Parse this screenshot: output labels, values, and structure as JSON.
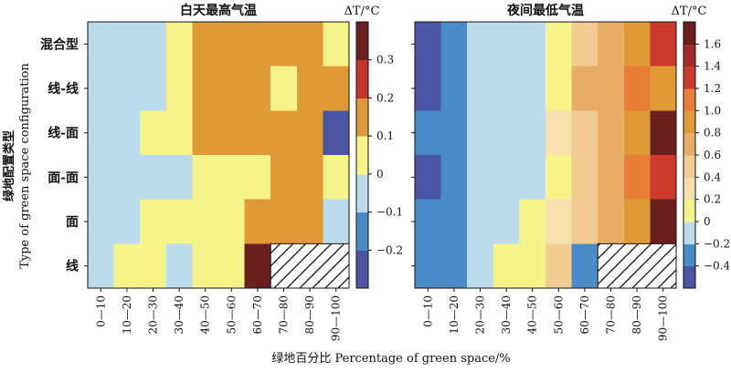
{
  "chart_data": [
    {
      "type": "heatmap",
      "title": "白天最高气温",
      "xlabel": "绿地百分比 Percentage of green space/%",
      "ylabel_cn": "绿地配置类型",
      "ylabel_en": "Type of green space configuration",
      "x_categories": [
        "0—10",
        "10—20",
        "20—30",
        "30—40",
        "40—50",
        "50—60",
        "60—70",
        "70—80",
        "80—90",
        "90—100"
      ],
      "y_categories": [
        "混合型",
        "线-线",
        "线-面",
        "面-面",
        "面",
        "线"
      ],
      "colorbar": {
        "label": "ΔT/°C",
        "boundaries": [
          -0.3,
          -0.2,
          -0.1,
          0,
          0.1,
          0.2,
          0.3,
          0.4
        ],
        "ticks": [
          -0.2,
          -0.1,
          0,
          0.1,
          0.2,
          0.3
        ],
        "tick_labels": [
          "−0.2",
          "−0.1",
          "0",
          "0.1",
          "0.2",
          "0.3"
        ],
        "colors": [
          "#4a56a4",
          "#4a8cc8",
          "#bcdcee",
          "#f4f48a",
          "#e09a35",
          "#c8332a",
          "#6b1e1e"
        ]
      },
      "values": [
        [
          -0.05,
          -0.05,
          -0.05,
          0.05,
          0.15,
          0.15,
          0.15,
          0.15,
          0.15,
          0.05
        ],
        [
          -0.05,
          -0.05,
          -0.05,
          0.05,
          0.15,
          0.15,
          0.15,
          0.05,
          0.15,
          0.15
        ],
        [
          -0.05,
          -0.05,
          0.05,
          0.05,
          0.15,
          0.15,
          0.15,
          0.15,
          0.15,
          -0.25
        ],
        [
          -0.05,
          -0.05,
          -0.05,
          -0.05,
          0.05,
          0.05,
          0.05,
          0.15,
          0.15,
          0.05
        ],
        [
          -0.05,
          -0.05,
          0.05,
          0.05,
          0.05,
          0.05,
          0.15,
          0.15,
          0.15,
          -0.05
        ],
        [
          -0.05,
          0.05,
          0.05,
          -0.05,
          0.05,
          0.05,
          0.35,
          null,
          null,
          null
        ]
      ],
      "missing_label": "no data (hatched)"
    },
    {
      "type": "heatmap",
      "title": "夜间最低气温",
      "xlabel": "绿地百分比 Percentage of green space/%",
      "x_categories": [
        "0—10",
        "10—20",
        "20—30",
        "30—40",
        "40—50",
        "50—60",
        "60—70",
        "70—80",
        "80—90",
        "90—100"
      ],
      "y_categories": [
        "混合型",
        "线-线",
        "线-面",
        "面-面",
        "面",
        "线"
      ],
      "colorbar": {
        "label": "ΔT/°C",
        "boundaries": [
          -0.6,
          -0.4,
          -0.2,
          0,
          0.2,
          0.4,
          0.6,
          0.8,
          1.0,
          1.2,
          1.4,
          1.6,
          1.8
        ],
        "ticks": [
          -0.4,
          -0.2,
          0,
          0.2,
          0.4,
          0.6,
          0.8,
          1.0,
          1.2,
          1.4,
          1.6
        ],
        "tick_labels": [
          "−0.4",
          "−0.2",
          "0",
          "0.2",
          "0.4",
          "0.6",
          "0.8",
          "1.0",
          "1.2",
          "1.4",
          "1.6"
        ],
        "colors": [
          "#4a56a4",
          "#4a8cc8",
          "#bcdcee",
          "#f4f48a",
          "#f7e0ad",
          "#f1cb91",
          "#e8ae68",
          "#e09a35",
          "#e87d35",
          "#cc3a2e",
          "#a52a2a",
          "#6b1e1e"
        ]
      },
      "values": [
        [
          -0.5,
          -0.3,
          -0.1,
          -0.1,
          -0.1,
          0.1,
          0.5,
          0.7,
          0.9,
          1.3
        ],
        [
          -0.5,
          -0.3,
          -0.1,
          -0.1,
          -0.1,
          0.1,
          0.7,
          0.7,
          1.1,
          0.9
        ],
        [
          -0.3,
          -0.3,
          -0.1,
          -0.1,
          -0.1,
          0.3,
          0.5,
          0.7,
          0.9,
          1.7
        ],
        [
          -0.5,
          -0.3,
          -0.1,
          -0.1,
          -0.1,
          0.1,
          0.5,
          0.7,
          1.1,
          1.3
        ],
        [
          -0.3,
          -0.3,
          -0.1,
          -0.1,
          0.1,
          0.3,
          0.5,
          0.7,
          0.9,
          1.7
        ],
        [
          -0.3,
          -0.3,
          -0.1,
          0.1,
          0.1,
          0.5,
          -0.3,
          null,
          null,
          null
        ]
      ],
      "missing_label": "no data (hatched)"
    }
  ]
}
